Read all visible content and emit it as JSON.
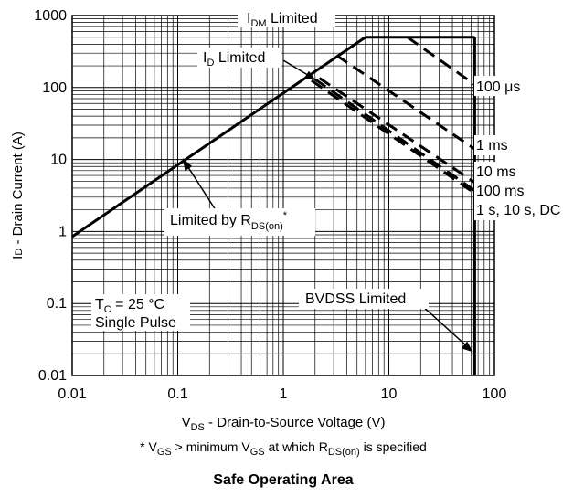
{
  "chart_data": {
    "type": "line",
    "title": "",
    "caption": "Safe Operating Area",
    "xscale": "log",
    "yscale": "log",
    "xlim": [
      0.01,
      100
    ],
    "ylim": [
      0.01,
      1000
    ],
    "grid": true,
    "xlabel": {
      "main": "V",
      "sub": "DS",
      "rest": " - Drain-to-Source Voltage (V)"
    },
    "ylabel": {
      "prefix": "I",
      "sub": "D",
      "rest": " - Drain Current (A)"
    },
    "x_ticks": [
      {
        "value": 0.01,
        "label": "0.01"
      },
      {
        "value": 0.1,
        "label": "0.1"
      },
      {
        "value": 1,
        "label": "1"
      },
      {
        "value": 10,
        "label": "10"
      },
      {
        "value": 100,
        "label": "100"
      }
    ],
    "y_ticks": [
      {
        "value": 0.01,
        "label": "0.01"
      },
      {
        "value": 0.1,
        "label": "0.1"
      },
      {
        "value": 1,
        "label": "1"
      },
      {
        "value": 10,
        "label": "10"
      },
      {
        "value": 100,
        "label": "100"
      },
      {
        "value": 1000,
        "label": "1000"
      }
    ],
    "series": [
      {
        "style": "solid",
        "x": [
          0.01,
          6.0
        ],
        "y": [
          0.85,
          500
        ]
      },
      {
        "style": "solid",
        "x": [
          6.0,
          65
        ],
        "y": [
          500,
          500
        ]
      },
      {
        "style": "solid",
        "x": [
          65,
          65
        ],
        "y": [
          0.01,
          500
        ]
      },
      {
        "style": "dashed",
        "x": [
          15,
          65
        ],
        "y": [
          500,
          110
        ]
      },
      {
        "style": "dashed",
        "x": [
          3.2,
          65
        ],
        "y": [
          280,
          14
        ]
      },
      {
        "style": "dashed",
        "x": [
          2.2,
          65
        ],
        "y": [
          135,
          4.8
        ]
      },
      {
        "style": "dashed",
        "x": [
          2.0,
          65
        ],
        "y": [
          130,
          3.7
        ]
      },
      {
        "style": "dashed",
        "x": [
          1.85,
          65
        ],
        "y": [
          125,
          3.4
        ]
      }
    ],
    "annotations": {
      "idm": {
        "main": "I",
        "sub": "DM",
        "rest": " Limited"
      },
      "id": {
        "main": "I",
        "sub": "D",
        "rest": " Limited"
      },
      "rds": {
        "main": "Limited by R",
        "sub": "DS(on)",
        "sup": "*"
      },
      "pulse_labels": [
        "100 μs",
        "1 ms",
        "10 ms",
        "100 ms",
        "1 s, 10 s, DC"
      ],
      "tc": {
        "main": "T",
        "sub": "C",
        "rest": " = 25 °C"
      },
      "single": "Single Pulse",
      "bvdss": "BVDSS Limited"
    },
    "footnote": {
      "star": "* V",
      "s1": "GS",
      "t1": " > minimum V",
      "s2": "GS",
      "t2": " at which R",
      "s3": "DS(on)",
      "t3": " is specified"
    }
  }
}
